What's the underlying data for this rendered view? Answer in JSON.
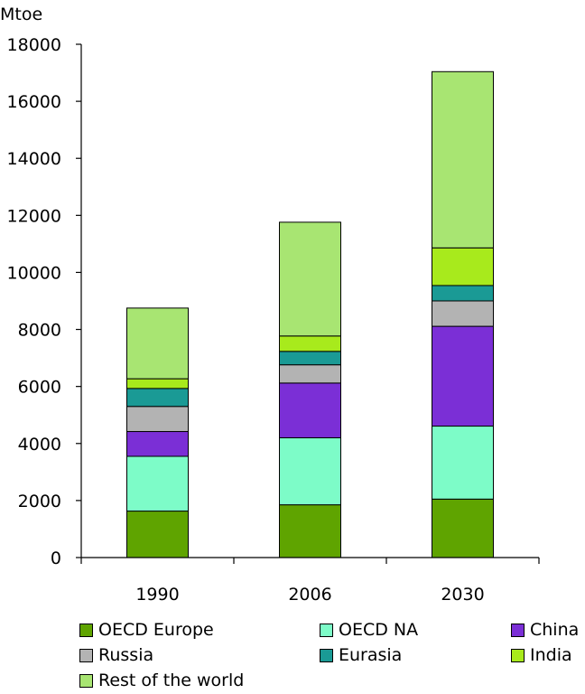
{
  "chart_data": {
    "type": "bar",
    "stacked": true,
    "ylabel": "Mtoe",
    "ylim": [
      0,
      18000
    ],
    "yticks": [
      0,
      2000,
      4000,
      6000,
      8000,
      10000,
      12000,
      14000,
      16000,
      18000
    ],
    "categories": [
      "1990",
      "2006",
      "2030"
    ],
    "grid": false,
    "legend_position": "bottom",
    "series": [
      {
        "name": "OECD Europe",
        "color": "#5fa400",
        "values": [
          1630,
          1850,
          2050
        ]
      },
      {
        "name": "OECD NA",
        "color": "#7dfcc8",
        "values": [
          1920,
          2350,
          2560
        ]
      },
      {
        "name": "China",
        "color": "#7b2fd6",
        "values": [
          870,
          1920,
          3500
        ]
      },
      {
        "name": "Russia",
        "color": "#b3b3b3",
        "values": [
          880,
          640,
          890
        ]
      },
      {
        "name": "Eurasia",
        "color": "#1a9a95",
        "values": [
          630,
          470,
          540
        ]
      },
      {
        "name": "India",
        "color": "#a8ea1c",
        "values": [
          340,
          540,
          1320
        ]
      },
      {
        "name": "Rest of the world",
        "color": "#a8e572",
        "values": [
          2480,
          3990,
          6180
        ]
      }
    ]
  }
}
